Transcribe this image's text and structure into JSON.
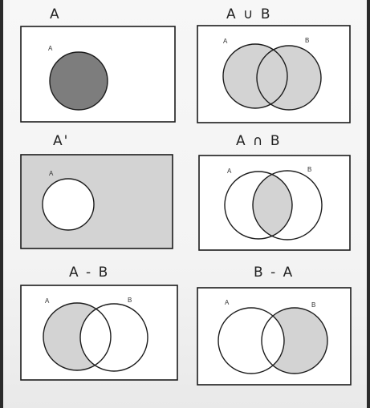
{
  "colors": {
    "box_fill": "#ffffff",
    "universe_fill": "#d3d3d3",
    "shade_light": "#d3d3d3",
    "shade_dark": "#7d7d7d",
    "stroke": "#1c1c1c"
  },
  "panels": [
    {
      "title": "A",
      "labels": [
        "A"
      ]
    },
    {
      "title": "A ∪ B",
      "labels": [
        "A",
        "B"
      ]
    },
    {
      "title": "A'",
      "labels": [
        "A"
      ]
    },
    {
      "title": "A ∩ B",
      "labels": [
        "A",
        "B"
      ]
    },
    {
      "title": "A - B",
      "labels": [
        "A",
        "B"
      ]
    },
    {
      "title": "B - A",
      "labels": [
        "A",
        "B"
      ]
    }
  ]
}
